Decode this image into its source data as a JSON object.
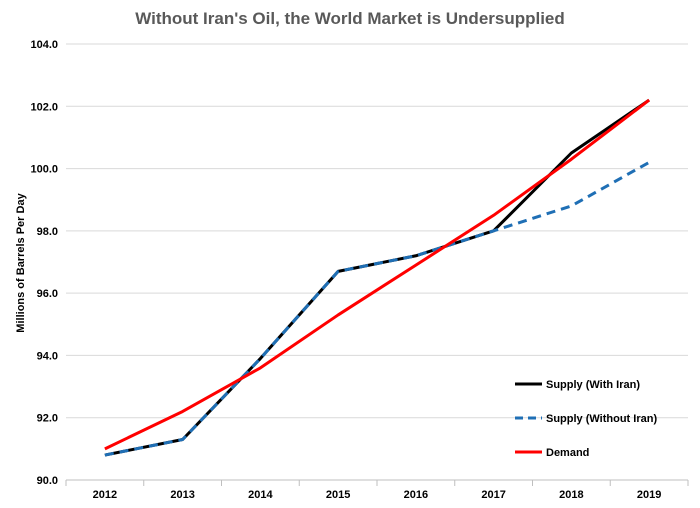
{
  "chart_data": {
    "type": "line",
    "title": "Without Iran's Oil, the World Market is Undersupplied",
    "xlabel": "",
    "ylabel": "Millions of Barrels Per Day",
    "ylim": [
      90.0,
      104.0
    ],
    "yticks": [
      "90.0",
      "92.0",
      "94.0",
      "96.0",
      "98.0",
      "100.0",
      "102.0",
      "104.0"
    ],
    "categories": [
      "2012",
      "2013",
      "2014",
      "2015",
      "2016",
      "2017",
      "2018",
      "2019"
    ],
    "grid": true,
    "legend_position": "bottom-right",
    "series": [
      {
        "name": "Supply (With Iran)",
        "color": "#000000",
        "style": "solid",
        "values": [
          90.8,
          91.3,
          93.9,
          96.7,
          97.2,
          98.0,
          100.5,
          102.2
        ]
      },
      {
        "name": "Supply (Without Iran)",
        "color": "#1f6fb5",
        "style": "dashed",
        "values": [
          90.8,
          91.3,
          93.9,
          96.7,
          97.2,
          98.0,
          98.8,
          100.2
        ]
      },
      {
        "name": "Demand",
        "color": "#ff0000",
        "style": "solid",
        "values": [
          91.0,
          92.2,
          93.6,
          95.3,
          96.9,
          98.5,
          100.3,
          102.2
        ]
      }
    ]
  }
}
